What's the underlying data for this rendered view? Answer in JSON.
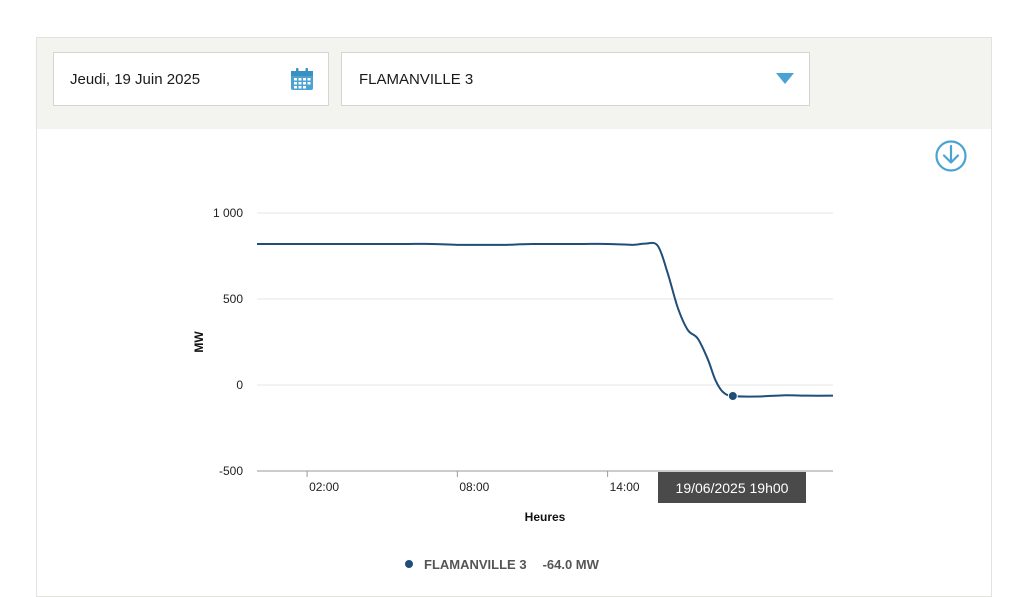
{
  "controls": {
    "date_value": "Jeudi, 19 Juin 2025",
    "site_value": "FLAMANVILLE 3",
    "calendar_icon": "calendar-icon",
    "caret_icon": "chevron-down-icon",
    "download_icon": "download-icon"
  },
  "colors": {
    "series": "#1f4e79",
    "accent": "#4aa3d3",
    "tooltip_bg": "#4a4a4a",
    "controls_bg": "#f3f3ef"
  },
  "tooltip": {
    "text": "19/06/2025 19h00"
  },
  "legend": {
    "name": "FLAMANVILLE 3",
    "value": "-64.0 MW"
  },
  "chart_data": {
    "type": "line",
    "ylabel": "MW",
    "xlabel": "Heures",
    "ylim": [
      -500,
      1000
    ],
    "yticks": [
      {
        "value": 1000,
        "label": "1 000"
      },
      {
        "value": 500,
        "label": "500"
      },
      {
        "value": 0,
        "label": "0"
      },
      {
        "value": -500,
        "label": "-500"
      }
    ],
    "xlim": [
      0,
      23
    ],
    "xticks": [
      {
        "value": 2,
        "label": "02:00"
      },
      {
        "value": 8,
        "label": "08:00"
      },
      {
        "value": 14,
        "label": "14:00"
      }
    ],
    "grid": true,
    "legend_position": "bottom",
    "series": [
      {
        "name": "FLAMANVILLE 3",
        "points": [
          [
            0,
            820
          ],
          [
            1,
            820
          ],
          [
            2,
            820
          ],
          [
            3,
            820
          ],
          [
            4,
            820
          ],
          [
            5,
            820
          ],
          [
            6,
            820
          ],
          [
            7,
            820
          ],
          [
            8,
            815
          ],
          [
            9,
            815
          ],
          [
            10,
            815
          ],
          [
            10.5,
            818
          ],
          [
            11,
            820
          ],
          [
            12,
            820
          ],
          [
            13,
            820
          ],
          [
            14,
            820
          ],
          [
            15,
            815
          ],
          [
            15.5,
            822
          ],
          [
            16,
            810
          ],
          [
            16.4,
            650
          ],
          [
            16.8,
            450
          ],
          [
            17.2,
            320
          ],
          [
            17.6,
            270
          ],
          [
            18,
            150
          ],
          [
            18.3,
            30
          ],
          [
            18.6,
            -40
          ],
          [
            19,
            -64
          ],
          [
            20,
            -67
          ],
          [
            21,
            -60
          ],
          [
            22,
            -62
          ],
          [
            23,
            -62
          ]
        ],
        "highlight": {
          "x": 19,
          "y": -64
        }
      }
    ]
  }
}
